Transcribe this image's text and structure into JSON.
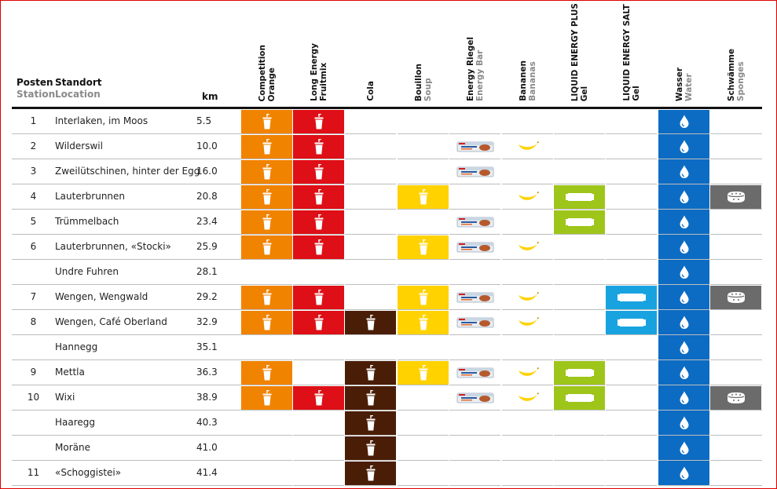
{
  "header": {
    "posten": "Posten",
    "station": "Station",
    "standort": "Standort",
    "location": "Location",
    "km": "km"
  },
  "columns": [
    {
      "key": "orange",
      "de": "Competition",
      "en": "Orange",
      "en_grey": false,
      "color": "#f08300"
    },
    {
      "key": "fruitmix",
      "de": "Long Energy",
      "en": "Fruitmix",
      "en_grey": false,
      "color": "#de0f16"
    },
    {
      "key": "cola",
      "de": "Cola",
      "en": "",
      "en_grey": false,
      "color": "#4a1e06"
    },
    {
      "key": "soup",
      "de": "Bouillon",
      "en": "Soup",
      "en_grey": true,
      "color": "#ffd200"
    },
    {
      "key": "bar",
      "de": "Energy Riegel",
      "en": "Energy Bar",
      "en_grey": true,
      "color": "#ffffff"
    },
    {
      "key": "banana",
      "de": "Bananen",
      "en": "Bananas",
      "en_grey": true,
      "color": "#ffffff"
    },
    {
      "key": "gelplus",
      "de": "LIQUID ENERGY PLUS",
      "en": "Gel",
      "en_grey": false,
      "color": "#9ec51a"
    },
    {
      "key": "gelsalty",
      "de": "LIQUID ENERGY SALTY",
      "en": "Gel",
      "en_grey": false,
      "color": "#18a3e0"
    },
    {
      "key": "water",
      "de": "Wasser",
      "en": "Water",
      "en_grey": true,
      "color": "#0c6cc4"
    },
    {
      "key": "sponge",
      "de": "Schwämme",
      "en": "Sponges",
      "en_grey": true,
      "color": "#6b6b6b"
    }
  ],
  "rows": [
    {
      "no": "1",
      "loc": "Interlaken, im Moos",
      "km": "5.5",
      "has": {
        "orange": 1,
        "fruitmix": 1,
        "water": 1
      }
    },
    {
      "no": "2",
      "loc": "Wilderswil",
      "km": "10.0",
      "has": {
        "orange": 1,
        "fruitmix": 1,
        "bar": 1,
        "banana": 1,
        "water": 1
      }
    },
    {
      "no": "3",
      "loc": "Zweilütschinen, hinter der Egg",
      "km": "16.0",
      "has": {
        "orange": 1,
        "fruitmix": 1,
        "bar": 1,
        "water": 1
      }
    },
    {
      "no": "4",
      "loc": "Lauterbrunnen",
      "km": "20.8",
      "has": {
        "orange": 1,
        "fruitmix": 1,
        "soup": 1,
        "banana": 1,
        "gelplus": 1,
        "water": 1,
        "sponge": 1
      }
    },
    {
      "no": "5",
      "loc": "Trümmelbach",
      "km": "23.4",
      "has": {
        "orange": 1,
        "fruitmix": 1,
        "bar": 1,
        "gelplus": 1,
        "water": 1
      }
    },
    {
      "no": "6",
      "loc": "Lauterbrunnen, «Stocki»",
      "km": "25.9",
      "has": {
        "orange": 1,
        "fruitmix": 1,
        "soup": 1,
        "bar": 1,
        "banana": 1,
        "water": 1
      }
    },
    {
      "no": "",
      "loc": "Undre Fuhren",
      "km": "28.1",
      "has": {
        "water": 1
      }
    },
    {
      "no": "7",
      "loc": "Wengen, Wengwald",
      "km": "29.2",
      "has": {
        "orange": 1,
        "fruitmix": 1,
        "soup": 1,
        "bar": 1,
        "banana": 1,
        "gelsalty": 1,
        "water": 1,
        "sponge": 1
      }
    },
    {
      "no": "8",
      "loc": "Wengen, Café Oberland",
      "km": "32.9",
      "has": {
        "orange": 1,
        "fruitmix": 1,
        "cola": 1,
        "soup": 1,
        "bar": 1,
        "banana": 1,
        "gelsalty": 1,
        "water": 1
      }
    },
    {
      "no": "",
      "loc": "Hannegg",
      "km": "35.1",
      "has": {
        "water": 1
      }
    },
    {
      "no": "9",
      "loc": "Mettla",
      "km": "36.3",
      "has": {
        "orange": 1,
        "cola": 1,
        "soup": 1,
        "bar": 1,
        "banana": 1,
        "gelplus": 1,
        "water": 1
      }
    },
    {
      "no": "10",
      "loc": "Wixi",
      "km": "38.9",
      "has": {
        "orange": 1,
        "fruitmix": 1,
        "cola": 1,
        "bar": 1,
        "banana": 1,
        "gelplus": 1,
        "water": 1,
        "sponge": 1
      }
    },
    {
      "no": "",
      "loc": "Haaregg",
      "km": "40.3",
      "has": {
        "cola": 1,
        "water": 1
      }
    },
    {
      "no": "",
      "loc": "Moräne",
      "km": "41.0",
      "has": {
        "cola": 1,
        "water": 1
      }
    },
    {
      "no": "11",
      "loc": "«Schoggistei»",
      "km": "41.4",
      "has": {
        "cola": 1,
        "water": 1
      }
    }
  ],
  "icons": {
    "orange": "cup-icon",
    "fruitmix": "cup-icon",
    "cola": "cup-icon",
    "soup": "cup-icon",
    "bar": "energy-bar-icon",
    "banana": "banana-icon",
    "gelplus": "gel-pack-icon",
    "gelsalty": "gel-pack-icon",
    "water": "water-drop-icon",
    "sponge": "sponge-icon"
  }
}
